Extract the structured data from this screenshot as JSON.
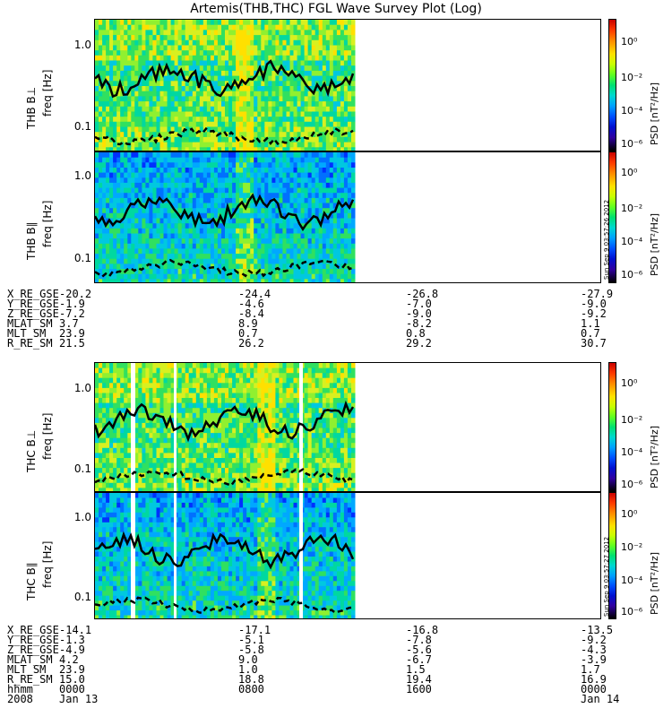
{
  "title": "Artemis(THB,THC) FGL Wave Survey Plot (Log)",
  "panels": [
    {
      "probe_label": "THB B⊥",
      "axis_label": "freq [Hz]"
    },
    {
      "probe_label": "THB B∥",
      "axis_label": "freq [Hz]"
    },
    {
      "probe_label": "THC B⊥",
      "axis_label": "freq [Hz]"
    },
    {
      "probe_label": "THC B∥",
      "axis_label": "freq [Hz]"
    }
  ],
  "y_ticks": [
    "1.0",
    "0.1"
  ],
  "colorbar": {
    "label": "PSD [nT²/Hz]",
    "ticks": [
      "10⁰",
      "10⁻²",
      "10⁻⁴",
      "10⁻⁶"
    ]
  },
  "stamps": [
    "Sun Sep 9 03:57:26 2012",
    "Sun Sep 9 03:57:27 2012"
  ],
  "ephem_thb": {
    "rows": [
      {
        "label": "X_RE_GSE",
        "values": [
          "-20.2",
          "-24.4",
          "-26.8",
          "-27.9"
        ]
      },
      {
        "label": "Y_RE_GSE",
        "values": [
          "-1.9",
          "-4.6",
          "-7.0",
          "-9.0"
        ]
      },
      {
        "label": "Z_RE_GSE",
        "values": [
          "-7.2",
          "-8.4",
          "-9.0",
          "-9.2"
        ]
      },
      {
        "label": "MLAT_SM",
        "values": [
          "3.7",
          "8.9",
          "-8.2",
          "1.1"
        ]
      },
      {
        "label": "MLT_SM",
        "values": [
          "23.9",
          "0.7",
          "0.8",
          "0.7"
        ]
      },
      {
        "label": "R_RE_SM",
        "values": [
          "21.5",
          "26.2",
          "29.2",
          "30.7"
        ]
      }
    ]
  },
  "ephem_thc": {
    "rows": [
      {
        "label": "X_RE_GSE",
        "values": [
          "-14.1",
          "-17.1",
          "-16.8",
          "-13.5"
        ]
      },
      {
        "label": "Y_RE_GSE",
        "values": [
          "-1.3",
          "-5.1",
          "-7.8",
          "-9.2"
        ]
      },
      {
        "label": "Z_RE_GSE",
        "values": [
          "-4.9",
          "-5.8",
          "-5.6",
          "-4.3"
        ]
      },
      {
        "label": "MLAT_SM",
        "values": [
          "4.2",
          "9.0",
          "-6.7",
          "-3.9"
        ]
      },
      {
        "label": "MLT_SM",
        "values": [
          "23.9",
          "1.0",
          "1.5",
          "1.7"
        ]
      },
      {
        "label": "R_RE_SM",
        "values": [
          "15.0",
          "18.8",
          "19.4",
          "16.9"
        ]
      },
      {
        "label": "hhmm",
        "values": [
          "0000",
          "0800",
          "1600",
          "0000"
        ]
      },
      {
        "label": "2008",
        "values": [
          "Jan 13",
          "",
          "",
          "Jan 14"
        ]
      }
    ]
  },
  "chart_data": {
    "type": "heatmap",
    "title": "Artemis(THB,THC) FGL Wave Survey Plot (Log)",
    "x_range": [
      "2008-01-13 00:00",
      "2008-01-14 00:00"
    ],
    "data_coverage_hours": [
      0,
      12
    ],
    "y_scale": "log",
    "y_range_hz": [
      0.05,
      2.0
    ],
    "y_ticks_hz": [
      0.1,
      1.0
    ],
    "color_scale": "log",
    "color_range": [
      1e-07,
      100.0
    ],
    "color_ticks": [
      1.0,
      0.01,
      0.0001,
      1e-06
    ],
    "overlay_lines": [
      "solid",
      "dashed"
    ],
    "panels": [
      "THB B⊥",
      "THB B∥",
      "THC B⊥",
      "THC B∥"
    ]
  }
}
